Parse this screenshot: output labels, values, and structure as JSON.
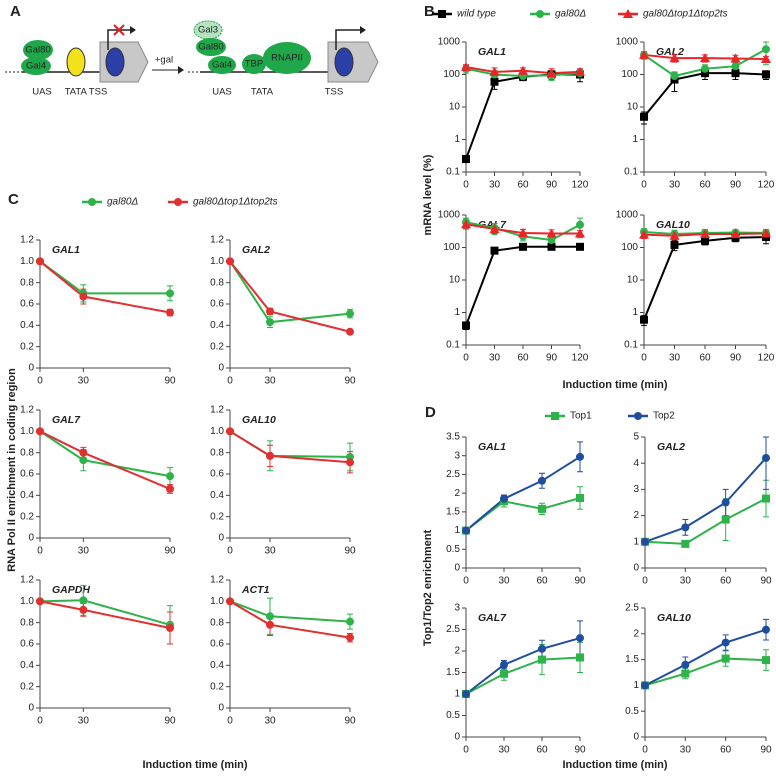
{
  "diagram": {
    "panel_label": "A",
    "left": {
      "top_protein": "Gal80",
      "bottom_protein": "Gal4",
      "uas": "UAS",
      "tata_tss": "TATA TSS"
    },
    "arrow_label": "+gal",
    "right": {
      "gal3": "Gal3",
      "gal80": "Gal80",
      "gal4": "Gal4",
      "tbp": "TBP",
      "rnapii": "RNAPII",
      "uas": "UAS",
      "tata": "TATA",
      "tss": "TSS"
    }
  },
  "chart_data": [
    {
      "type": "line",
      "panel": "B",
      "ylabel": "mRNA level (%)",
      "xlabel": "Induction time (min)",
      "log_scale": true,
      "series": [
        {
          "name": "wild type",
          "color": "#000000",
          "marker": "square"
        },
        {
          "name": "gal80Δ",
          "color": "#2db34a",
          "marker": "circle"
        },
        {
          "name": "gal80Δtop1Δtop2ts",
          "color": "#e8262a",
          "marker": "triangle"
        }
      ],
      "x": [
        0,
        30,
        60,
        90,
        120
      ],
      "xlim": [
        0,
        120
      ],
      "xticks": [
        0,
        30,
        60,
        90,
        120
      ],
      "ylim": [
        0.1,
        1000
      ],
      "yticks": [
        0.1,
        1,
        10,
        100,
        1000
      ],
      "subplots": [
        {
          "title": "GAL1",
          "series": [
            {
              "values": [
                0.25,
                60,
                85,
                100,
                100
              ],
              "errors": [
                0.05,
                25,
                20,
                30,
                40
              ]
            },
            {
              "values": [
                150,
                100,
                90,
                95,
                110
              ],
              "errors": [
                40,
                30,
                20,
                30,
                30
              ]
            },
            {
              "values": [
                170,
                120,
                130,
                110,
                120
              ],
              "errors": [
                30,
                40,
                30,
                40,
                30
              ]
            }
          ]
        },
        {
          "title": "GAL2",
          "series": [
            {
              "values": [
                5,
                70,
                110,
                110,
                100
              ],
              "errors": [
                2,
                40,
                40,
                40,
                30
              ]
            },
            {
              "values": [
                400,
                90,
                150,
                180,
                600
              ],
              "errors": [
                100,
                30,
                50,
                60,
                400
              ]
            },
            {
              "values": [
                400,
                320,
                320,
                310,
                300
              ],
              "errors": [
                100,
                80,
                80,
                80,
                60
              ]
            }
          ]
        },
        {
          "title": "GAL7",
          "series": [
            {
              "values": [
                0.4,
                80,
                105,
                105,
                105
              ],
              "errors": [
                0.1,
                10,
                10,
                10,
                10
              ]
            },
            {
              "values": [
                600,
                400,
                220,
                170,
                500
              ],
              "errors": [
                200,
                150,
                60,
                40,
                300
              ]
            },
            {
              "values": [
                520,
                370,
                280,
                270,
                270
              ],
              "errors": [
                150,
                100,
                80,
                80,
                60
              ]
            }
          ]
        },
        {
          "title": "GAL10",
          "series": [
            {
              "values": [
                0.6,
                120,
                160,
                200,
                210
              ],
              "errors": [
                0.2,
                40,
                40,
                50,
                80
              ]
            },
            {
              "values": [
                300,
                260,
                280,
                290,
                280
              ],
              "errors": [
                80,
                80,
                80,
                60,
                80
              ]
            },
            {
              "values": [
                250,
                230,
                260,
                260,
                270
              ],
              "errors": [
                60,
                60,
                60,
                60,
                60
              ]
            }
          ]
        }
      ]
    },
    {
      "type": "line",
      "panel": "C",
      "ylabel": "RNA Pol II enrichment in coding region",
      "xlabel": "Induction time (min)",
      "log_scale": false,
      "series": [
        {
          "name": "gal80Δ",
          "color": "#2db34a",
          "marker": "circle"
        },
        {
          "name": "gal80Δtop1Δtop2ts",
          "color": "#e03030",
          "marker": "circle"
        }
      ],
      "x": [
        0,
        30,
        90
      ],
      "xlim": [
        0,
        90
      ],
      "xticks": [
        0,
        30,
        90
      ],
      "ylim": [
        0,
        1.2
      ],
      "yticks": [
        0,
        0.2,
        0.4,
        0.6,
        0.8,
        {
          "value": 1,
          "label": "1.0"
        },
        1.2
      ],
      "subplots": [
        {
          "title": "GAL1",
          "series": [
            {
              "values": [
                1,
                0.7,
                0.7
              ],
              "errors": [
                null,
                0.08,
                0.07
              ]
            },
            {
              "values": [
                1,
                0.67,
                0.52
              ],
              "errors": [
                null,
                0.07,
                0.03
              ]
            }
          ]
        },
        {
          "title": "GAL2",
          "series": [
            {
              "values": [
                1,
                0.43,
                0.51
              ],
              "errors": [
                null,
                0.05,
                0.04
              ]
            },
            {
              "values": [
                1,
                0.53,
                0.34
              ],
              "errors": [
                null,
                0.03,
                0.02
              ]
            }
          ]
        },
        {
          "title": "GAL7",
          "series": [
            {
              "values": [
                1,
                0.73,
                0.58
              ],
              "errors": [
                null,
                0.1,
                0.08
              ]
            },
            {
              "values": [
                1,
                0.8,
                0.46
              ],
              "errors": [
                null,
                0.05,
                0.04
              ]
            }
          ]
        },
        {
          "title": "GAL10",
          "series": [
            {
              "values": [
                1,
                0.77,
                0.76
              ],
              "errors": [
                null,
                0.14,
                0.13
              ]
            },
            {
              "values": [
                1,
                0.77,
                0.71
              ],
              "errors": [
                null,
                0.1,
                0.1
              ]
            }
          ]
        },
        {
          "title": "GAPDH",
          "series": [
            {
              "values": [
                1,
                1.01,
                0.78
              ],
              "errors": [
                null,
                0.14,
                0.18
              ]
            },
            {
              "values": [
                1,
                0.92,
                0.75
              ],
              "errors": [
                null,
                0.06,
                0.15
              ]
            }
          ]
        },
        {
          "title": "ACT1",
          "series": [
            {
              "values": [
                1,
                0.86,
                0.81
              ],
              "errors": [
                null,
                0.17,
                0.07
              ]
            },
            {
              "values": [
                1,
                0.78,
                0.66
              ],
              "errors": [
                null,
                0.1,
                0.04
              ]
            }
          ]
        }
      ]
    },
    {
      "type": "line",
      "panel": "D",
      "ylabel": "Top1/Top2 enrichment",
      "xlabel": "Induction time (min)",
      "log_scale": false,
      "series": [
        {
          "name": "Top1",
          "color": "#2db34a",
          "marker": "square"
        },
        {
          "name": "Top2",
          "color": "#1f4e9e",
          "marker": "circle"
        }
      ],
      "x": [
        0,
        30,
        60,
        90
      ],
      "xlim": [
        0,
        90
      ],
      "xticks": [
        0,
        30,
        60,
        90
      ],
      "subplots": [
        {
          "title": "GAL1",
          "ylim": [
            0,
            3.5
          ],
          "yticks": [
            0,
            0.5,
            1,
            1.5,
            2,
            2.5,
            3,
            3.5
          ],
          "series": [
            {
              "values": [
                1,
                1.78,
                1.58,
                1.87
              ],
              "errors": [
                null,
                0.15,
                0.15,
                0.3
              ]
            },
            {
              "values": [
                1,
                1.85,
                2.33,
                2.97
              ],
              "errors": [
                null,
                0.1,
                0.2,
                0.4
              ]
            }
          ]
        },
        {
          "title": "GAL2",
          "ylim": [
            0,
            5
          ],
          "yticks": [
            0,
            1,
            2,
            3,
            4,
            5
          ],
          "series": [
            {
              "values": [
                1,
                0.92,
                1.85,
                2.65
              ],
              "errors": [
                null,
                0.1,
                0.8,
                0.7
              ]
            },
            {
              "values": [
                1,
                1.55,
                2.5,
                4.2
              ],
              "errors": [
                null,
                0.3,
                0.5,
                1.2
              ]
            }
          ]
        },
        {
          "title": "GAL7",
          "ylim": [
            0,
            3
          ],
          "yticks": [
            0,
            0.5,
            1,
            1.5,
            2,
            2.5,
            3
          ],
          "series": [
            {
              "values": [
                1,
                1.47,
                1.8,
                1.85
              ],
              "errors": [
                null,
                0.15,
                0.35,
                0.35
              ]
            },
            {
              "values": [
                1,
                1.68,
                2.05,
                2.3
              ],
              "errors": [
                null,
                0.1,
                0.2,
                0.4
              ]
            }
          ]
        },
        {
          "title": "GAL10",
          "ylim": [
            0,
            2.5
          ],
          "yticks": [
            0,
            0.5,
            1,
            1.5,
            2,
            2.5
          ],
          "series": [
            {
              "values": [
                1,
                1.23,
                1.52,
                1.49
              ],
              "errors": [
                null,
                0.1,
                0.15,
                0.2
              ]
            },
            {
              "values": [
                1,
                1.4,
                1.83,
                2.08
              ],
              "errors": [
                null,
                0.15,
                0.15,
                0.2
              ]
            }
          ]
        }
      ]
    }
  ]
}
